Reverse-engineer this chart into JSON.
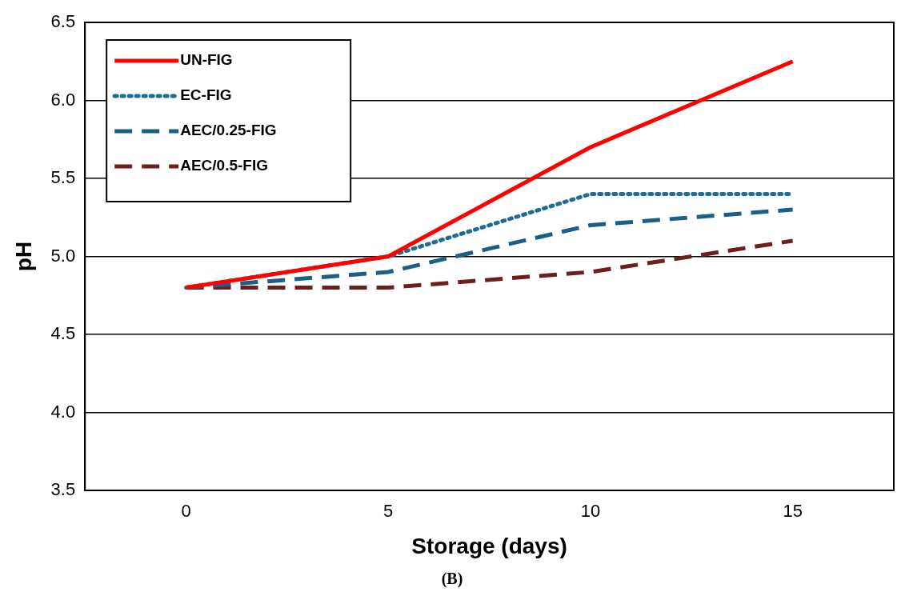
{
  "chart_data": {
    "type": "line",
    "xlabel": "Storage (days)",
    "ylabel": "pH",
    "categories": [
      "0",
      "5",
      "10",
      "15"
    ],
    "series": [
      {
        "name": "UN-FIG",
        "color": "#ff0000",
        "line_style": "solid",
        "values": [
          4.8,
          5.0,
          5.7,
          6.25
        ]
      },
      {
        "name": "EC-FIG",
        "color": "#1f6a96",
        "line_style": "dotted",
        "values": [
          4.8,
          5.0,
          5.4,
          5.4
        ]
      },
      {
        "name": "AEC/0.25-FIG",
        "color": "#1b5e88",
        "line_style": "dashed",
        "values": [
          4.8,
          4.9,
          5.2,
          5.3
        ]
      },
      {
        "name": "AEC/0.5-FIG",
        "color": "#6e1e1e",
        "line_style": "dashed",
        "values": [
          4.8,
          4.8,
          4.9,
          5.1
        ]
      }
    ],
    "ylim": [
      3.5,
      6.5
    ],
    "yticks": [
      3.5,
      {
        "value": 4,
        "label": "4.0"
      },
      4.5,
      {
        "value": 5,
        "label": "5.0"
      },
      5.5,
      {
        "value": 6,
        "label": "6.0"
      },
      6.5
    ],
    "grid": "y",
    "legend": "top left",
    "marker": "none",
    "annotations": [
      "(B)"
    ]
  }
}
